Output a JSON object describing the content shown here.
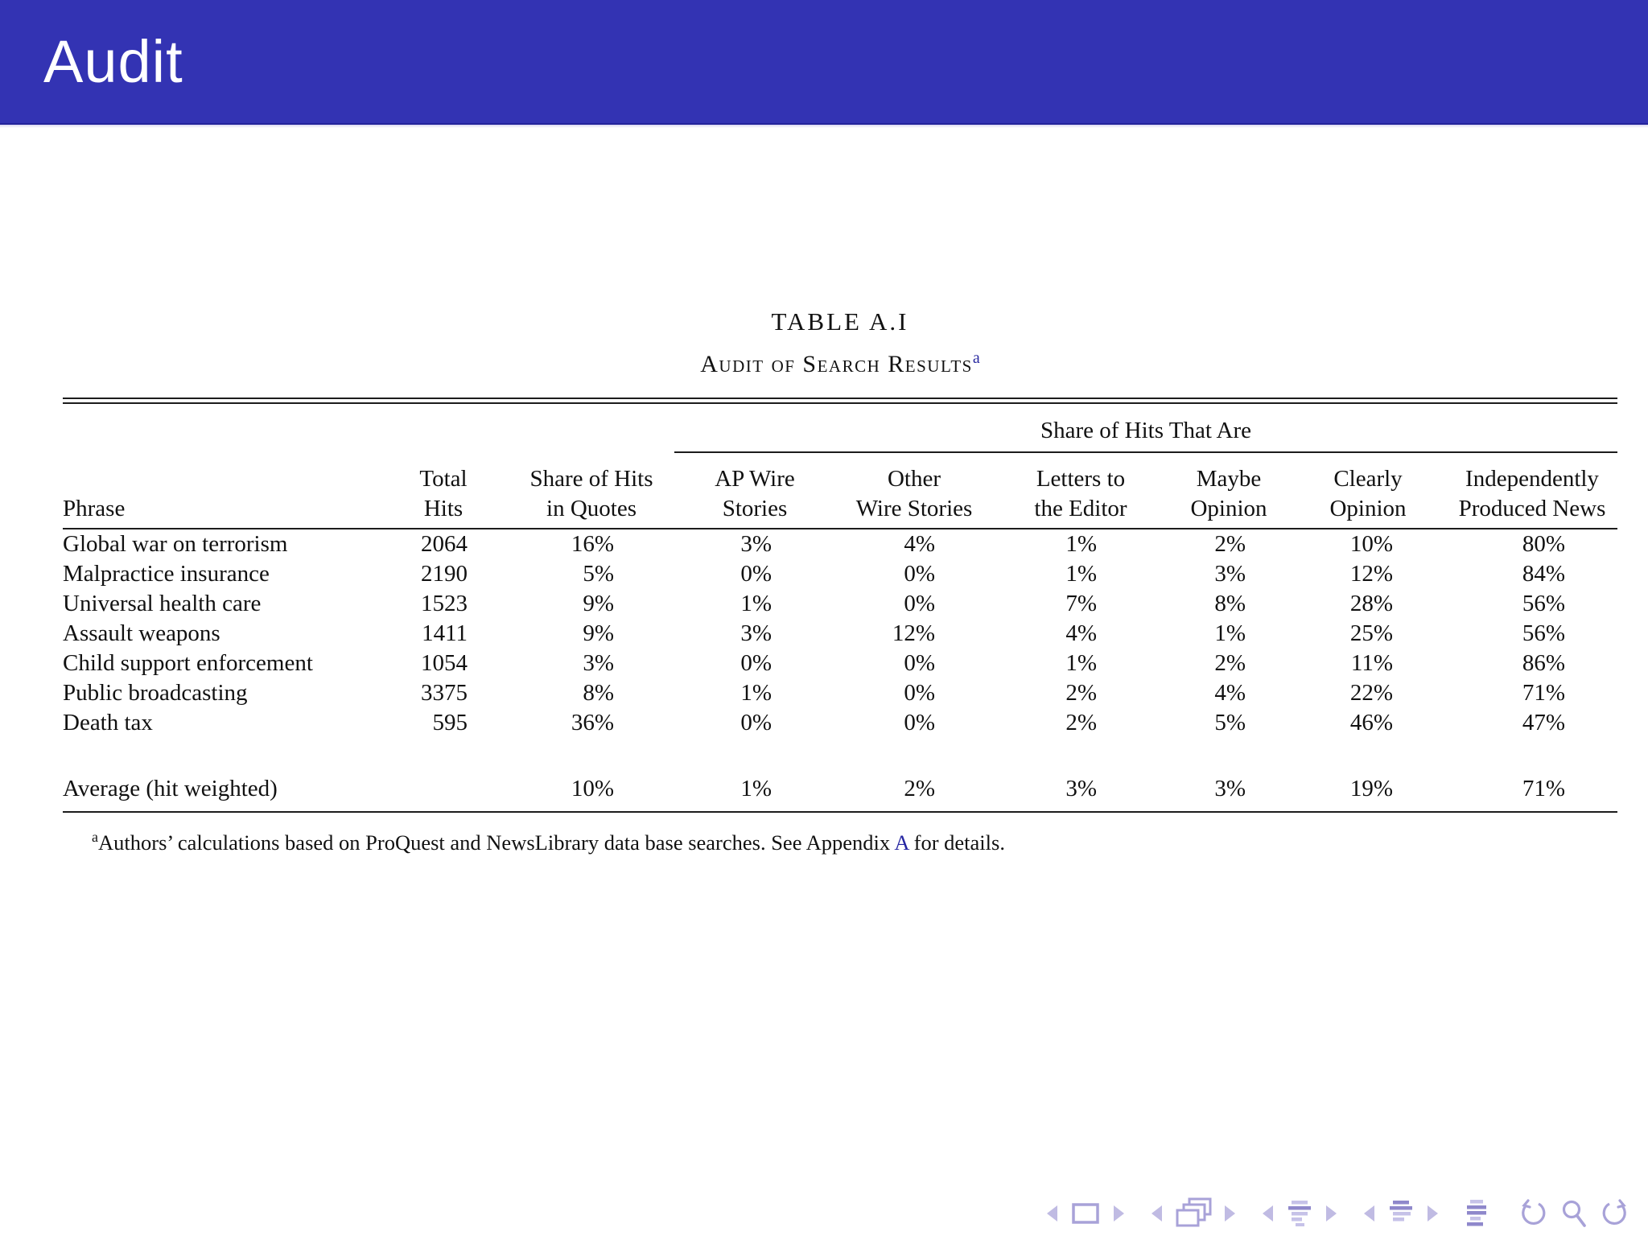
{
  "slide": {
    "title": "Audit"
  },
  "table": {
    "caption_label": "TABLE A.I",
    "caption_title": "Audit of Search Results",
    "caption_footnote_marker": "a",
    "span_header": "Share of Hits That Are",
    "col_headers": [
      {
        "line1": "",
        "line2": "Phrase"
      },
      {
        "line1": "Total",
        "line2": "Hits"
      },
      {
        "line1": "Share of Hits",
        "line2": "in Quotes"
      },
      {
        "line1": "AP Wire",
        "line2": "Stories"
      },
      {
        "line1": "Other",
        "line2": "Wire Stories"
      },
      {
        "line1": "Letters to",
        "line2": "the Editor"
      },
      {
        "line1": "Maybe",
        "line2": "Opinion"
      },
      {
        "line1": "Clearly",
        "line2": "Opinion"
      },
      {
        "line1": "Independently",
        "line2": "Produced News"
      }
    ],
    "rows": [
      [
        "Global war on terrorism",
        "2064",
        "16%",
        "3%",
        "4%",
        "1%",
        "2%",
        "10%",
        "80%"
      ],
      [
        "Malpractice insurance",
        "2190",
        "5%",
        "0%",
        "0%",
        "1%",
        "3%",
        "12%",
        "84%"
      ],
      [
        "Universal health care",
        "1523",
        "9%",
        "1%",
        "0%",
        "7%",
        "8%",
        "28%",
        "56%"
      ],
      [
        "Assault weapons",
        "1411",
        "9%",
        "3%",
        "12%",
        "4%",
        "1%",
        "25%",
        "56%"
      ],
      [
        "Child support enforcement",
        "1054",
        "3%",
        "0%",
        "0%",
        "1%",
        "2%",
        "11%",
        "86%"
      ],
      [
        "Public broadcasting",
        "3375",
        "8%",
        "1%",
        "0%",
        "2%",
        "4%",
        "22%",
        "71%"
      ],
      [
        "Death tax",
        "595",
        "36%",
        "0%",
        "0%",
        "2%",
        "5%",
        "46%",
        "47%"
      ]
    ],
    "average_row": [
      "Average (hit weighted)",
      "",
      "10%",
      "1%",
      "2%",
      "3%",
      "3%",
      "19%",
      "71%"
    ],
    "footnote": {
      "marker": "a",
      "text_before": "Authors’ calculations based on ProQuest and NewsLibrary data base searches. See Appendix ",
      "link_text": "A",
      "text_after": " for details."
    }
  },
  "nav_icons": [
    "slide-prev",
    "slide",
    "slide-next",
    "frame-prev",
    "frame",
    "frame-next",
    "subsection-prev",
    "subsection",
    "subsection-next",
    "section-prev",
    "section",
    "section-next",
    "appendix",
    "back",
    "find",
    "forward"
  ],
  "colors": {
    "header_bg": "#3333b3",
    "link": "#2626a2",
    "nav_light": "#c0bbe3",
    "nav_dark": "#8f88cb",
    "rule": "#1c1c1c"
  }
}
